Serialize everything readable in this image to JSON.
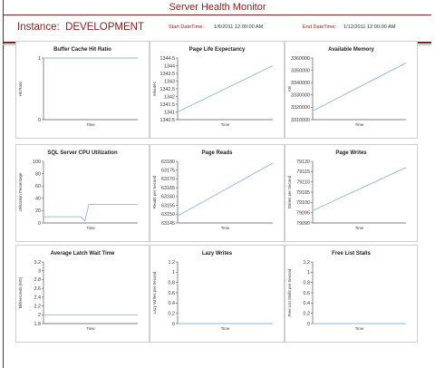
{
  "app_title": "Server Health Monitor",
  "header": {
    "instance_label": "Instance:",
    "instance_name": "DEVELOPMENT",
    "start_label": "Start DateTime:",
    "start_value": "1/6/2011 12:00:00 AM",
    "end_label": "End DateTime:",
    "end_value": "1/12/2011 12:00:00 AM"
  },
  "colors": {
    "accent": "#8b1a1a",
    "line": "#8db4e2",
    "frame": "#cfcfcf"
  },
  "chart_data": [
    {
      "type": "line",
      "title": "Buffer Cache Hit Ratio",
      "xlabel": "Time",
      "ylabel": "Hit Ratio",
      "yticks": [
        "0",
        "1"
      ],
      "ylim": [
        0,
        1
      ],
      "series": [
        {
          "x": [
            0,
            1
          ],
          "y": [
            1,
            1
          ]
        }
      ]
    },
    {
      "type": "line",
      "title": "Page Life Expectancy",
      "xlabel": "Time",
      "ylabel": "Minutes",
      "yticks": [
        "1340.5",
        "1341",
        "1341.5",
        "1342",
        "1342.5",
        "1343",
        "1343.5",
        "1344",
        "1344.5"
      ],
      "ylim": [
        1340.5,
        1344.5
      ],
      "series": [
        {
          "x": [
            0,
            1
          ],
          "y": [
            1341,
            1344
          ]
        }
      ]
    },
    {
      "type": "line",
      "title": "Available Memory",
      "xlabel": "Time",
      "ylabel": "KB",
      "yticks": [
        "3310000",
        "3320000",
        "3330000",
        "3340000",
        "3350000",
        "3360000"
      ],
      "ylim": [
        3310000,
        3360000
      ],
      "series": [
        {
          "x": [
            0,
            1
          ],
          "y": [
            3317000,
            3356000
          ]
        }
      ]
    },
    {
      "type": "line",
      "title": "SQL Server CPU Utilization",
      "xlabel": "Time",
      "ylabel": "Utilization Percentage",
      "yticks": [
        "0",
        "20",
        "40",
        "60",
        "80",
        "100"
      ],
      "ylim": [
        0,
        100
      ],
      "series": [
        {
          "x": [
            0,
            0.4,
            0.44,
            0.48,
            1
          ],
          "y": [
            10,
            10,
            3,
            30,
            30
          ]
        }
      ]
    },
    {
      "type": "line",
      "title": "Page Reads",
      "xlabel": "Time",
      "ylabel": "Reads per Second",
      "yticks": [
        "63145",
        "63150",
        "63155",
        "63160",
        "63165",
        "63170",
        "63175",
        "63180"
      ],
      "ylim": [
        63145,
        63180
      ],
      "series": [
        {
          "x": [
            0,
            1
          ],
          "y": [
            63149,
            63179
          ]
        }
      ]
    },
    {
      "type": "line",
      "title": "Page Writes",
      "xlabel": "Time",
      "ylabel": "Writes per Second",
      "yticks": [
        "79090",
        "79095",
        "79100",
        "79105",
        "79110",
        "79115",
        "79120"
      ],
      "ylim": [
        79090,
        79120
      ],
      "series": [
        {
          "x": [
            0,
            1
          ],
          "y": [
            79096,
            79117
          ]
        }
      ]
    },
    {
      "type": "line",
      "title": "Average Latch Wait Time",
      "xlabel": "Time",
      "ylabel": "Milliseconds (MS)",
      "yticks": [
        "1.8",
        "2",
        "2.2",
        "2.4",
        "2.6",
        "2.8",
        "3",
        "3.2"
      ],
      "ylim": [
        1.8,
        3.2
      ],
      "series": [
        {
          "x": [
            0,
            1
          ],
          "y": [
            2,
            2
          ]
        }
      ]
    },
    {
      "type": "line",
      "title": "Lazy Writes",
      "xlabel": "Time",
      "ylabel": "Lazy Writes per Second",
      "yticks": [
        "0",
        "0.2",
        "0.4",
        "0.6",
        "0.8",
        "1",
        "1.2"
      ],
      "ylim": [
        0,
        1.2
      ],
      "series": [
        {
          "x": [
            0,
            1
          ],
          "y": [
            0,
            0
          ]
        }
      ]
    },
    {
      "type": "line",
      "title": "Free List Stalls",
      "xlabel": "Time",
      "ylabel": "Free List Stalls per Second",
      "yticks": [
        "0",
        "0.2",
        "0.4",
        "0.6",
        "0.8",
        "1",
        "1.2"
      ],
      "ylim": [
        0,
        1.2
      ],
      "series": [
        {
          "x": [
            0,
            1
          ],
          "y": [
            0,
            0
          ]
        }
      ]
    }
  ]
}
